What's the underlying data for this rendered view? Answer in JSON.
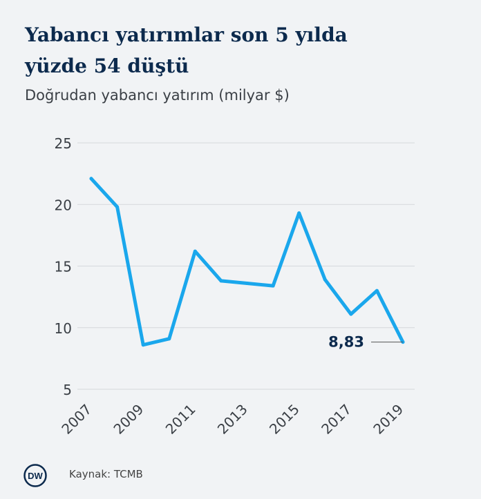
{
  "header": {
    "title_line1": "Yabancı yatırımlar son 5 yılda",
    "title_line2": "yüzde 54 düştü",
    "subtitle": "Doğrudan yabancı yatırım (milyar $)"
  },
  "footer": {
    "logo_text": "DW",
    "source": "Kaynak: TCMB"
  },
  "colors": {
    "line": "#1aa7ec",
    "title": "#0c2a4d",
    "grid": "#d5d8dc",
    "axis_text": "#3a3f45"
  },
  "chart_data": {
    "type": "line",
    "title": "Yabancı yatırımlar son 5 yılda yüzde 54 düştü",
    "subtitle": "Doğrudan yabancı yatırım (milyar $)",
    "x": [
      2007,
      2008,
      2009,
      2010,
      2011,
      2012,
      2013,
      2014,
      2015,
      2016,
      2017,
      2018,
      2019
    ],
    "series": [
      {
        "values": [
          22.1,
          19.8,
          8.6,
          9.1,
          16.2,
          13.8,
          13.6,
          13.4,
          19.3,
          13.9,
          11.1,
          13.0,
          8.83
        ]
      }
    ],
    "x_tick_labels": [
      "2007",
      "2009",
      "2011",
      "2013",
      "2015",
      "2017",
      "2019"
    ],
    "y_ticks": [
      5,
      10,
      15,
      20,
      25
    ],
    "y_tick_labels": [
      "5",
      "10",
      "15",
      "20",
      "25"
    ],
    "ylim": [
      5,
      25
    ],
    "xlim": [
      2007,
      2019
    ],
    "grid": "horizontal",
    "annotation": {
      "x": 2019,
      "y": 8.83,
      "label": "8,83"
    }
  }
}
